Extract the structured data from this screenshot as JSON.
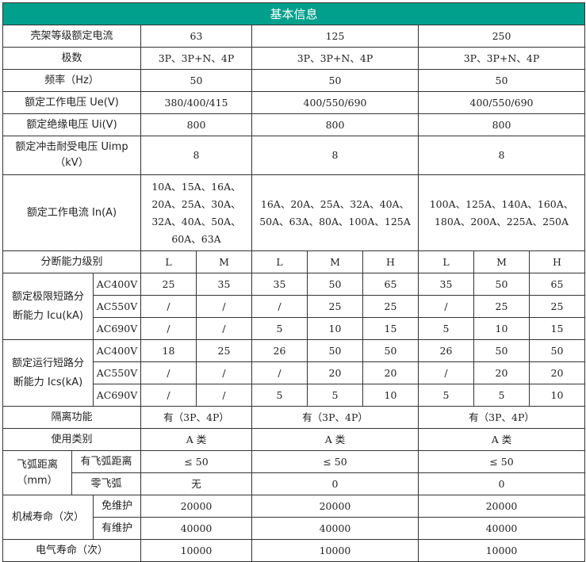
{
  "title": "基本信息",
  "rows": {
    "frame": {
      "label": "壳架等级额定电流",
      "v": [
        "63",
        "125",
        "250"
      ]
    },
    "poles": {
      "label": "极数",
      "v": [
        "3P、3P+N、4P",
        "3P、3P+N、4P",
        "3P、3P+N、4P"
      ]
    },
    "freq": {
      "label": "频率（Hz）",
      "v": [
        "50",
        "50",
        "50"
      ]
    },
    "ue": {
      "label": "额定工作电压 Ue(V)",
      "v": [
        "380/400/415",
        "400/550/690",
        "400/550/690"
      ]
    },
    "ui": {
      "label": "额定绝缘电压 Ui(V)",
      "v": [
        "800",
        "800",
        "800"
      ]
    },
    "uimp": {
      "label": "额定冲击耐受电压 Uimp（kV）",
      "v": [
        "8",
        "8",
        "8"
      ]
    },
    "in": {
      "label": "额定工作电流 In(A)",
      "v": [
        "10A、15A、16A、20A、25A、30A、32A、40A、50A、60A、63A",
        "16A、20A、25A、32A、40A、50A、63A、80A、100A、125A",
        "100A、125A、140A、160A、180A、200A、225A、250A"
      ]
    },
    "level": {
      "label": "分断能力级别",
      "v": [
        "L",
        "M",
        "L",
        "M",
        "H",
        "L",
        "M",
        "H"
      ]
    },
    "icu": {
      "label": "额定极限短路分断能力 Icu(kA)",
      "sub": [
        {
          "label": "AC400V",
          "v": [
            "25",
            "35",
            "35",
            "50",
            "65",
            "35",
            "50",
            "65"
          ]
        },
        {
          "label": "AC550V",
          "v": [
            "/",
            "/",
            "/",
            "25",
            "25",
            "/",
            "25",
            "25"
          ]
        },
        {
          "label": "AC690V",
          "v": [
            "/",
            "/",
            "5",
            "10",
            "15",
            "5",
            "10",
            "15"
          ]
        }
      ]
    },
    "ics": {
      "label": "额定运行短路分断能力 Ics(kA)",
      "sub": [
        {
          "label": "AC400V",
          "v": [
            "18",
            "25",
            "26",
            "50",
            "50",
            "26",
            "50",
            "50"
          ]
        },
        {
          "label": "AC550V",
          "v": [
            "/",
            "/",
            "/",
            "20",
            "20",
            "/",
            "20",
            "20"
          ]
        },
        {
          "label": "AC690V",
          "v": [
            "/",
            "/",
            "5",
            "5",
            "10",
            "5",
            "5",
            "10"
          ]
        }
      ]
    },
    "isolation": {
      "label": "隔离功能",
      "v": [
        "有（3P、4P）",
        "有（3P、4P）",
        "有（3P、4P）"
      ]
    },
    "category": {
      "label": "使用类别",
      "v": [
        "A 类",
        "A 类",
        "A 类"
      ]
    },
    "arc": {
      "label": "飞弧距离（mm）",
      "sub": [
        {
          "label": "有飞弧距离",
          "v": [
            "≤ 50",
            "≤ 50",
            "≤ 50"
          ]
        },
        {
          "label": "零飞弧",
          "v": [
            "无",
            "0",
            "0"
          ]
        }
      ]
    },
    "mech": {
      "label": "机械寿命（次）",
      "sub": [
        {
          "label": "免维护",
          "v": [
            "20000",
            "20000",
            "20000"
          ]
        },
        {
          "label": "有维护",
          "v": [
            "40000",
            "40000",
            "40000"
          ]
        }
      ]
    },
    "elec": {
      "label": "电气寿命（次）",
      "v": [
        "10000",
        "10000",
        "10000"
      ]
    }
  }
}
